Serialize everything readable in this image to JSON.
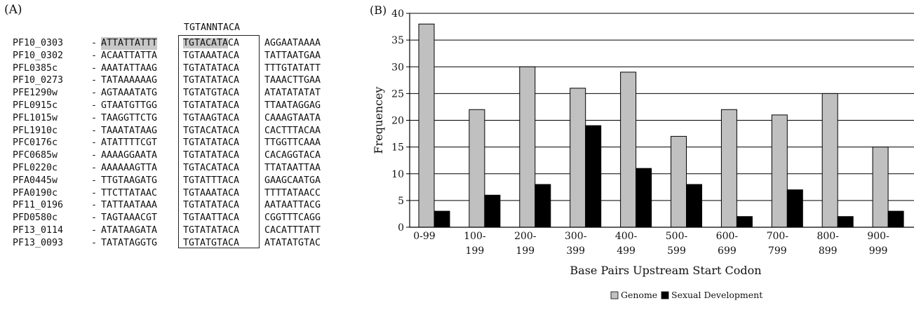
{
  "panel_a": {
    "label": "(A)",
    "consensus": "TGTANNTACA",
    "rows": [
      {
        "id": "PF10_0303",
        "up": "ATTATTATTT",
        "core": "TGTACATACA",
        "down": "AGGAATAAAA",
        "highlight": true
      },
      {
        "id": "PF10_0302",
        "up": "ACAATTATTA",
        "core": "TGTAAATACA",
        "down": "TATTAATGAA"
      },
      {
        "id": "PFL0385c",
        "up": "AAATATTAAG",
        "core": "TGTATATACA",
        "down": "TTTGTATATT"
      },
      {
        "id": "PF10_0273",
        "up": "TATAAAAAAG",
        "core": "TGTATATACA",
        "down": "TAAACTTGAA"
      },
      {
        "id": "PFE1290w",
        "up": "AGTAAATATG",
        "core": "TGTATGTACA",
        "down": "ATATATATAT"
      },
      {
        "id": "PFL0915c",
        "up": "GTAATGTTGG",
        "core": "TGTATATACA",
        "down": "TTAATAGGAG"
      },
      {
        "id": "PFL1015w",
        "up": "TAAGGTTCTG",
        "core": "TGTAAGTACA",
        "down": "CAAAGTAATA"
      },
      {
        "id": "PFL1910c",
        "up": "TAAATATAAG",
        "core": "TGTACATACA",
        "down": "CACTTTACAA"
      },
      {
        "id": "PFC0176c",
        "up": "ATATTTTCGT",
        "core": "TGTATATACA",
        "down": "TTGGTTCAAA"
      },
      {
        "id": "PFC0685w",
        "up": "AAAAGGAATA",
        "core": "TGTATATACA",
        "down": "CACAGGTACA"
      },
      {
        "id": "PFL0220c",
        "up": "AAAAAAGTTA",
        "core": "TGTACATACA",
        "down": "TTATAATTAA"
      },
      {
        "id": "PFA0445w",
        "up": "TTGTAAGATG",
        "core": "TGTATTTACA",
        "down": "GAAGCAATGA"
      },
      {
        "id": "PFA0190c",
        "up": "TTCTTATAAC",
        "core": "TGTAAATACA",
        "down": "TTTTATAACC"
      },
      {
        "id": "PF11_0196",
        "up": "TATTAATAAA",
        "core": "TGTATATACA",
        "down": "AATAATTACG"
      },
      {
        "id": "PFD0580c",
        "up": "TAGTAAACGT",
        "core": "TGTAATTACA",
        "down": "CGGTTTCAGG"
      },
      {
        "id": "PF13_0114",
        "up": "ATATAAGATA",
        "core": "TGTATATACA",
        "down": "CACATTTATT"
      },
      {
        "id": "PF13_0093",
        "up": "TATATAGGTG",
        "core": "TGTATGTACA",
        "down": "ATATATGTAC"
      }
    ]
  },
  "chart_data": {
    "type": "bar",
    "panel_label": "(B)",
    "title": "",
    "xlabel": "Base Pairs Upstream Start Codon",
    "ylabel": "Frequencey",
    "ylim": [
      0,
      40
    ],
    "yticks": [
      0,
      5,
      10,
      15,
      20,
      25,
      30,
      35,
      40
    ],
    "grid": true,
    "legend_position": "bottom-center",
    "categories": [
      [
        "0-99"
      ],
      [
        "100-",
        "199"
      ],
      [
        "200-",
        "199"
      ],
      [
        "300-",
        "399"
      ],
      [
        "400-",
        "499"
      ],
      [
        "500-",
        "599"
      ],
      [
        "600-",
        "699"
      ],
      [
        "700-",
        "799"
      ],
      [
        "800-",
        "899"
      ],
      [
        "900-",
        "999"
      ]
    ],
    "series": [
      {
        "name": "Genome",
        "color": "#c0c0c0",
        "values": [
          38,
          22,
          30,
          26,
          29,
          17,
          22,
          21,
          25,
          15
        ]
      },
      {
        "name": "Sexual Development",
        "color": "#000000",
        "values": [
          3,
          6,
          8,
          19,
          11,
          8,
          2,
          7,
          2,
          3
        ]
      }
    ]
  }
}
